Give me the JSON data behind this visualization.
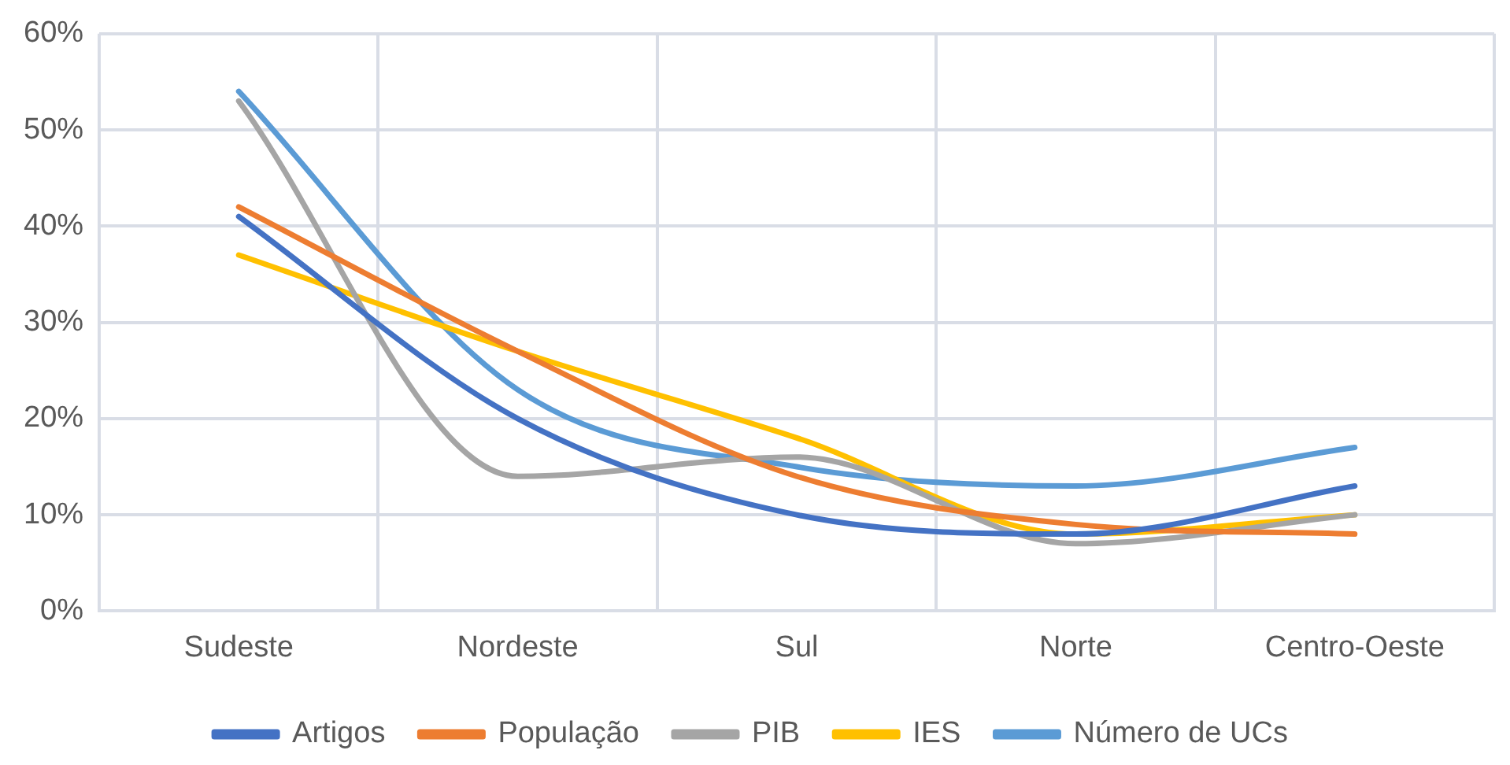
{
  "chart_data": {
    "type": "line",
    "categories": [
      "Sudeste",
      "Nordeste",
      "Sul",
      "Norte",
      "Centro-Oeste"
    ],
    "series": [
      {
        "name": "Artigos",
        "color": "#4472c4",
        "values": [
          41,
          20,
          10,
          8,
          13
        ]
      },
      {
        "name": "População",
        "color": "#ed7d31",
        "values": [
          42,
          27,
          14,
          9,
          8
        ]
      },
      {
        "name": "PIB",
        "color": "#a5a5a5",
        "values": [
          53,
          14,
          16,
          7,
          10
        ]
      },
      {
        "name": "IES",
        "color": "#ffc000",
        "values": [
          37,
          27,
          18,
          8,
          10
        ]
      },
      {
        "name": "Número de UCs",
        "color": "#5b9bd5",
        "values": [
          54,
          23,
          15,
          13,
          17
        ]
      }
    ],
    "ylim": [
      0,
      60
    ],
    "yticks": [
      {
        "value": 0,
        "label": "0%"
      },
      {
        "value": 10,
        "label": "10%"
      },
      {
        "value": 20,
        "label": "20%"
      },
      {
        "value": 30,
        "label": "30%"
      },
      {
        "value": 40,
        "label": "40%"
      },
      {
        "value": 50,
        "label": "50%"
      },
      {
        "value": 60,
        "label": "60%"
      }
    ],
    "grid": true,
    "legend": "bottom",
    "marker": "none",
    "line_style": "solid"
  }
}
